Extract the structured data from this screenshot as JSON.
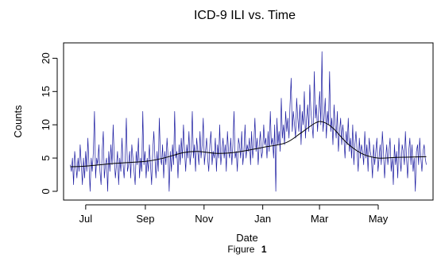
{
  "chart_data": {
    "type": "line",
    "title": "ICD-9 ILI vs. Time",
    "xlabel": "Date",
    "ylabel": "Counts",
    "xlim": [
      "2006-06-08",
      "2007-06-27"
    ],
    "ylim": [
      0,
      21
    ],
    "x_ticks": [
      {
        "date": "2006-07-01",
        "label": "Jul"
      },
      {
        "date": "2006-09-01",
        "label": "Sep"
      },
      {
        "date": "2006-11-01",
        "label": "Nov"
      },
      {
        "date": "2007-01-01",
        "label": "Jan"
      },
      {
        "date": "2007-03-01",
        "label": "Mar"
      },
      {
        "date": "2007-05-01",
        "label": "May"
      }
    ],
    "y_ticks": [
      0,
      5,
      10,
      15,
      20
    ],
    "grid": false,
    "legend": "none",
    "series": [
      {
        "style": "raw",
        "color": "#1a1aa0",
        "x_start": "2006-06-15",
        "x_end": "2007-06-20",
        "values": [
          4,
          3,
          5,
          1,
          6,
          4,
          2,
          5,
          3,
          7,
          4,
          1,
          5,
          2,
          6,
          3,
          8,
          4,
          0,
          5,
          3,
          6,
          12,
          2,
          5,
          4,
          7,
          3,
          1,
          6,
          9,
          2,
          4,
          5,
          0,
          6,
          3,
          7,
          4,
          10,
          5,
          2,
          4,
          6,
          1,
          5,
          3,
          8,
          4,
          2,
          5,
          11,
          3,
          4,
          6,
          2,
          7,
          5,
          3,
          1,
          6,
          4,
          8,
          2,
          5,
          3,
          12,
          4,
          6,
          2,
          5,
          3,
          7,
          4,
          1,
          6,
          9,
          5,
          2,
          6,
          3,
          11,
          5,
          4,
          7,
          2,
          6,
          4,
          8,
          5,
          0,
          6,
          3,
          7,
          4,
          12,
          5,
          6,
          2,
          7,
          4,
          8,
          5,
          10,
          6,
          3,
          7,
          5,
          9,
          4,
          6,
          12,
          5,
          7,
          3,
          8,
          6,
          4,
          9,
          5,
          7,
          11,
          4,
          6,
          8,
          5,
          3,
          7,
          9,
          4,
          6,
          5,
          8,
          3,
          7,
          5,
          10,
          4,
          6,
          8,
          5,
          7,
          3,
          9,
          6,
          5,
          8,
          4,
          7,
          12,
          5,
          6,
          3,
          8,
          7,
          5,
          9,
          4,
          6,
          10,
          5,
          7,
          6,
          8,
          4,
          9,
          5,
          7,
          11,
          6,
          8,
          4,
          7,
          9,
          5,
          6,
          10,
          7,
          8,
          5,
          9,
          6,
          12,
          7,
          8,
          5,
          10,
          0,
          11,
          7,
          9,
          6,
          14,
          8,
          10,
          7,
          12,
          9,
          11,
          8,
          13,
          17,
          9,
          12,
          10,
          8,
          14,
          11,
          9,
          13,
          7,
          12,
          10,
          15,
          8,
          11,
          13,
          9,
          16,
          12,
          10,
          8,
          18,
          11,
          13,
          9,
          12,
          15,
          10,
          21,
          9,
          11,
          14,
          8,
          12,
          10,
          18,
          9,
          11,
          7,
          13,
          10,
          8,
          12,
          6,
          9,
          11,
          7,
          10,
          8,
          5,
          9,
          7,
          11,
          6,
          8,
          5,
          10,
          4,
          7,
          9,
          6,
          3,
          8,
          5,
          7,
          6,
          4,
          9,
          5,
          7,
          3,
          8,
          6,
          5,
          2,
          7,
          4,
          6,
          8,
          3,
          5,
          7,
          4,
          9,
          6,
          2,
          5,
          7,
          4,
          6,
          8,
          3,
          5,
          1,
          7,
          4,
          6,
          2,
          8,
          5,
          3,
          7,
          6,
          4,
          9,
          5,
          2,
          6,
          8,
          4,
          7,
          3,
          5,
          0,
          6,
          7,
          4,
          8,
          5,
          3,
          6,
          7,
          5,
          4
        ]
      },
      {
        "style": "smooth",
        "color": "#000000",
        "points": [
          [
            "2006-06-15",
            3.7
          ],
          [
            "2006-07-01",
            3.8
          ],
          [
            "2006-08-01",
            4.2
          ],
          [
            "2006-09-01",
            4.5
          ],
          [
            "2006-09-20",
            5.0
          ],
          [
            "2006-10-10",
            5.8
          ],
          [
            "2006-10-25",
            6.0
          ],
          [
            "2006-11-15",
            5.7
          ],
          [
            "2006-12-05",
            5.9
          ],
          [
            "2007-01-01",
            6.6
          ],
          [
            "2007-01-25",
            7.3
          ],
          [
            "2007-02-10",
            8.8
          ],
          [
            "2007-02-25",
            10.3
          ],
          [
            "2007-03-05",
            10.4
          ],
          [
            "2007-03-15",
            9.5
          ],
          [
            "2007-03-30",
            7.2
          ],
          [
            "2007-04-15",
            5.6
          ],
          [
            "2007-05-01",
            5.0
          ],
          [
            "2007-05-20",
            5.1
          ],
          [
            "2007-06-20",
            5.2
          ]
        ]
      }
    ]
  },
  "figure": {
    "caption_prefix": "Figure",
    "caption_number": "1"
  }
}
